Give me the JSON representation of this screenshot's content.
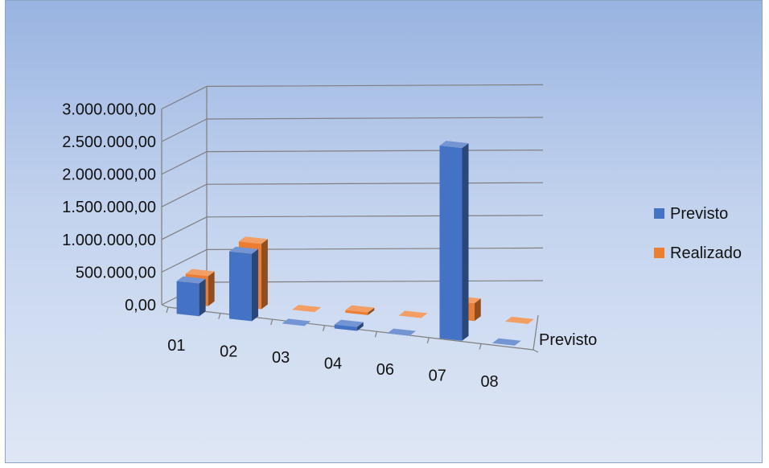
{
  "chart_data": {
    "type": "bar",
    "style": "3d-column",
    "categories": [
      "01",
      "02",
      "03",
      "04",
      "06",
      "07",
      "08"
    ],
    "series": [
      {
        "name": "Previsto",
        "color": "#4472c4",
        "values": [
          500000,
          1030000,
          0,
          60000,
          0,
          2950000,
          0
        ]
      },
      {
        "name": "Realizado",
        "color": "#ed7d31",
        "values": [
          460000,
          1000000,
          0,
          40000,
          0,
          270000,
          0
        ]
      }
    ],
    "depth_axis_label": "Previsto",
    "y_tick_labels": [
      "0,00",
      "500.000,00",
      "1.000.000,00",
      "1.500.000,00",
      "2.000.000,00",
      "2.500.000,00",
      "3.000.000,00"
    ],
    "ylim": [
      0,
      3000000
    ],
    "grid": true,
    "legend_position": "right"
  }
}
